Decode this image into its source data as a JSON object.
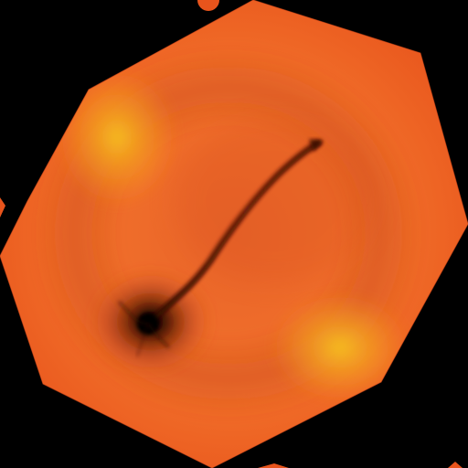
{
  "scene": {
    "background_color": "#000000",
    "shape": "octagon",
    "palette": {
      "base_orange": "#f26a1f",
      "edge_orange": "#e8541c",
      "highlight_yellow": "#f7b81e",
      "shadow_dark": "#2a0a02",
      "streak": "#6a1c08"
    },
    "features": [
      "yellow-highlight-upper-left",
      "yellow-highlight-lower-right",
      "dark-vortex-core",
      "dark-streak-toward-upper-right"
    ]
  }
}
